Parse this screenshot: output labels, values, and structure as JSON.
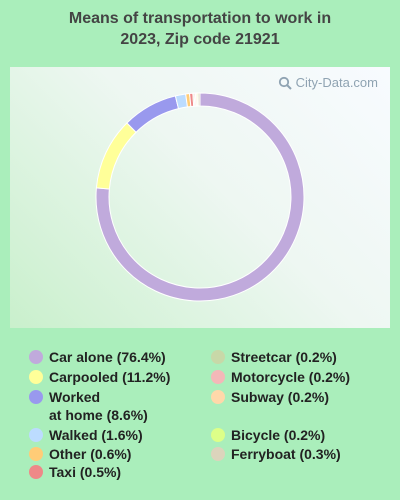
{
  "title": "Means of transportation to work in\n2023, Zip code 21921",
  "watermark": "City-Data.com",
  "chart_data": {
    "type": "pie",
    "title": "Means of transportation to work in 2023, Zip code 21921",
    "slices": [
      {
        "label": "Car alone",
        "value": 76.4,
        "legend": "Car alone (76.4%)",
        "color": "#c0aadc"
      },
      {
        "label": "Carpooled",
        "value": 11.2,
        "legend": "Carpooled (11.2%)",
        "color": "#ffff99"
      },
      {
        "label": "Worked at home",
        "value": 8.6,
        "legend": "Worked\nat home (8.6%)",
        "color": "#9999ee"
      },
      {
        "label": "Walked",
        "value": 1.6,
        "legend": "Walked (1.6%)",
        "color": "#bcdcff"
      },
      {
        "label": "Other",
        "value": 0.6,
        "legend": "Other (0.6%)",
        "color": "#ffcc77"
      },
      {
        "label": "Taxi",
        "value": 0.5,
        "legend": "Taxi (0.5%)",
        "color": "#ee8888"
      },
      {
        "label": "Streetcar",
        "value": 0.2,
        "legend": "Streetcar (0.2%)",
        "color": "#c8d8a8"
      },
      {
        "label": "Motorcycle",
        "value": 0.2,
        "legend": "Motorcycle (0.2%)",
        "color": "#f4b8b8"
      },
      {
        "label": "Subway",
        "value": 0.2,
        "legend": "Subway (0.2%)",
        "color": "#ffd8aa"
      },
      {
        "label": "Bicycle",
        "value": 0.2,
        "legend": "Bicycle (0.2%)",
        "color": "#ddff88"
      },
      {
        "label": "Ferryboat",
        "value": 0.3,
        "legend": "Ferryboat (0.3%)",
        "color": "#dcd4bc"
      }
    ],
    "legend_placement": "bottom"
  }
}
